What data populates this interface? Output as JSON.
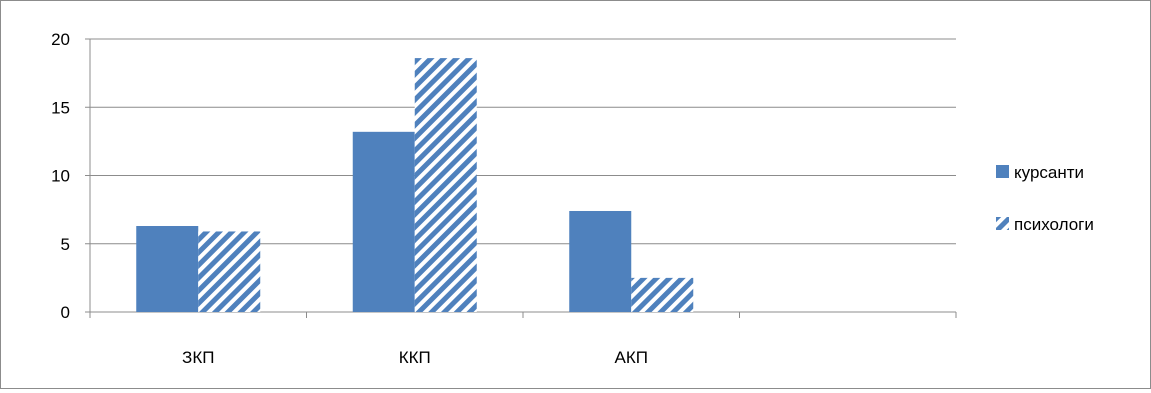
{
  "chart_data": {
    "type": "bar",
    "title": "",
    "xlabel": "",
    "ylabel": "",
    "categories": [
      "ЗКП",
      "ККП",
      "АКП",
      ""
    ],
    "series": [
      {
        "name": "курсанти",
        "values": [
          6.3,
          13.2,
          7.4,
          0
        ],
        "color": "#4f81bd",
        "pattern": "solid"
      },
      {
        "name": "психологи",
        "values": [
          5.9,
          18.6,
          2.5,
          0
        ],
        "color": "#4f81bd",
        "pattern": "diagonal-stripes"
      }
    ],
    "ylim": [
      0,
      20
    ],
    "yticks": [
      0,
      5,
      10,
      15,
      20
    ],
    "grid": true,
    "legend": "right"
  }
}
